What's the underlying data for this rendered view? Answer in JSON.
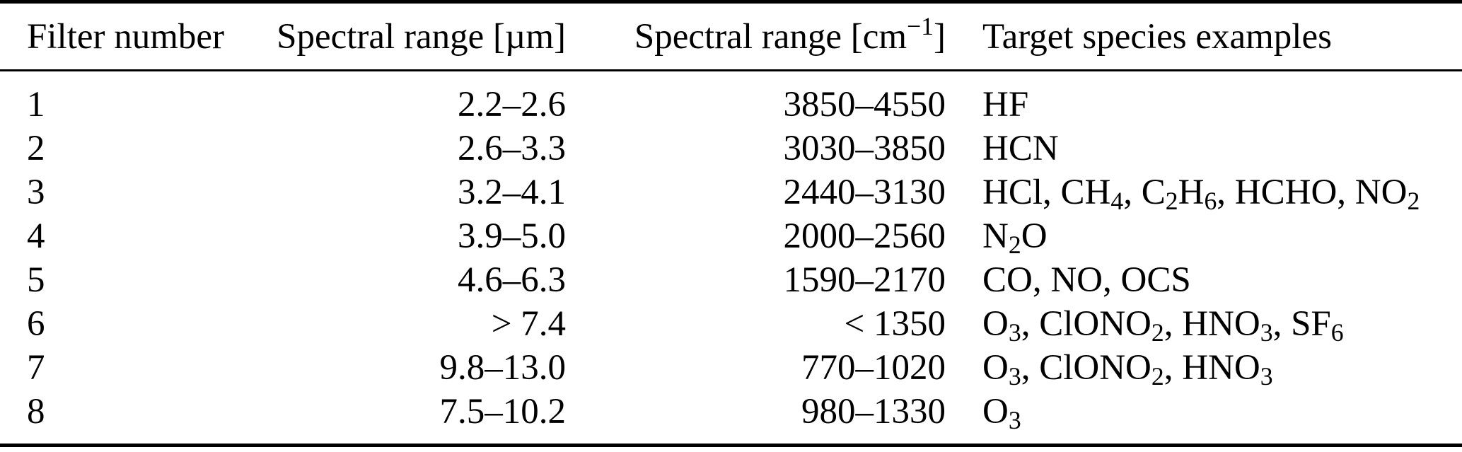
{
  "colors": {
    "text": "#000000",
    "background": "#ffffff",
    "rule": "#000000"
  },
  "table": {
    "column_keys": [
      "filter_number",
      "spectral_range_um",
      "spectral_range_cm",
      "species"
    ],
    "headers": [
      "Filter number",
      "Spectral range [µm]",
      [
        [
          "t",
          "Spectral range [cm"
        ],
        [
          "sup",
          "−1"
        ],
        [
          "t",
          "]"
        ]
      ],
      "Target species examples"
    ],
    "rows": [
      {
        "filter_number": "1",
        "spectral_range_um": "2.2–2.6",
        "spectral_range_cm": "3850–4550",
        "species": [
          [
            "t",
            "HF"
          ]
        ]
      },
      {
        "filter_number": "2",
        "spectral_range_um": "2.6–3.3",
        "spectral_range_cm": "3030–3850",
        "species": [
          [
            "t",
            "HCN"
          ]
        ]
      },
      {
        "filter_number": "3",
        "spectral_range_um": "3.2–4.1",
        "spectral_range_cm": "2440–3130",
        "species": [
          [
            "t",
            "HCl, CH"
          ],
          [
            "sub",
            "4"
          ],
          [
            "t",
            ", C"
          ],
          [
            "sub",
            "2"
          ],
          [
            "t",
            "H"
          ],
          [
            "sub",
            "6"
          ],
          [
            "t",
            ", HCHO, NO"
          ],
          [
            "sub",
            "2"
          ]
        ]
      },
      {
        "filter_number": "4",
        "spectral_range_um": "3.9–5.0",
        "spectral_range_cm": "2000–2560",
        "species": [
          [
            "t",
            "N"
          ],
          [
            "sub",
            "2"
          ],
          [
            "t",
            "O"
          ]
        ]
      },
      {
        "filter_number": "5",
        "spectral_range_um": "4.6–6.3",
        "spectral_range_cm": "1590–2170",
        "species": [
          [
            "t",
            "CO, NO, OCS"
          ]
        ]
      },
      {
        "filter_number": "6",
        "spectral_range_um": "> 7.4",
        "spectral_range_cm": "< 1350",
        "species": [
          [
            "t",
            "O"
          ],
          [
            "sub",
            "3"
          ],
          [
            "t",
            ", ClONO"
          ],
          [
            "sub",
            "2"
          ],
          [
            "t",
            ", HNO"
          ],
          [
            "sub",
            "3"
          ],
          [
            "t",
            ", SF"
          ],
          [
            "sub",
            "6"
          ]
        ]
      },
      {
        "filter_number": "7",
        "spectral_range_um": "9.8–13.0",
        "spectral_range_cm": "770–1020",
        "species": [
          [
            "t",
            "O"
          ],
          [
            "sub",
            "3"
          ],
          [
            "t",
            ", ClONO"
          ],
          [
            "sub",
            "2"
          ],
          [
            "t",
            ", HNO"
          ],
          [
            "sub",
            "3"
          ]
        ]
      },
      {
        "filter_number": "8",
        "spectral_range_um": "7.5–10.2",
        "spectral_range_cm": "980–1330",
        "species": [
          [
            "t",
            "O"
          ],
          [
            "sub",
            "3"
          ]
        ]
      }
    ]
  }
}
